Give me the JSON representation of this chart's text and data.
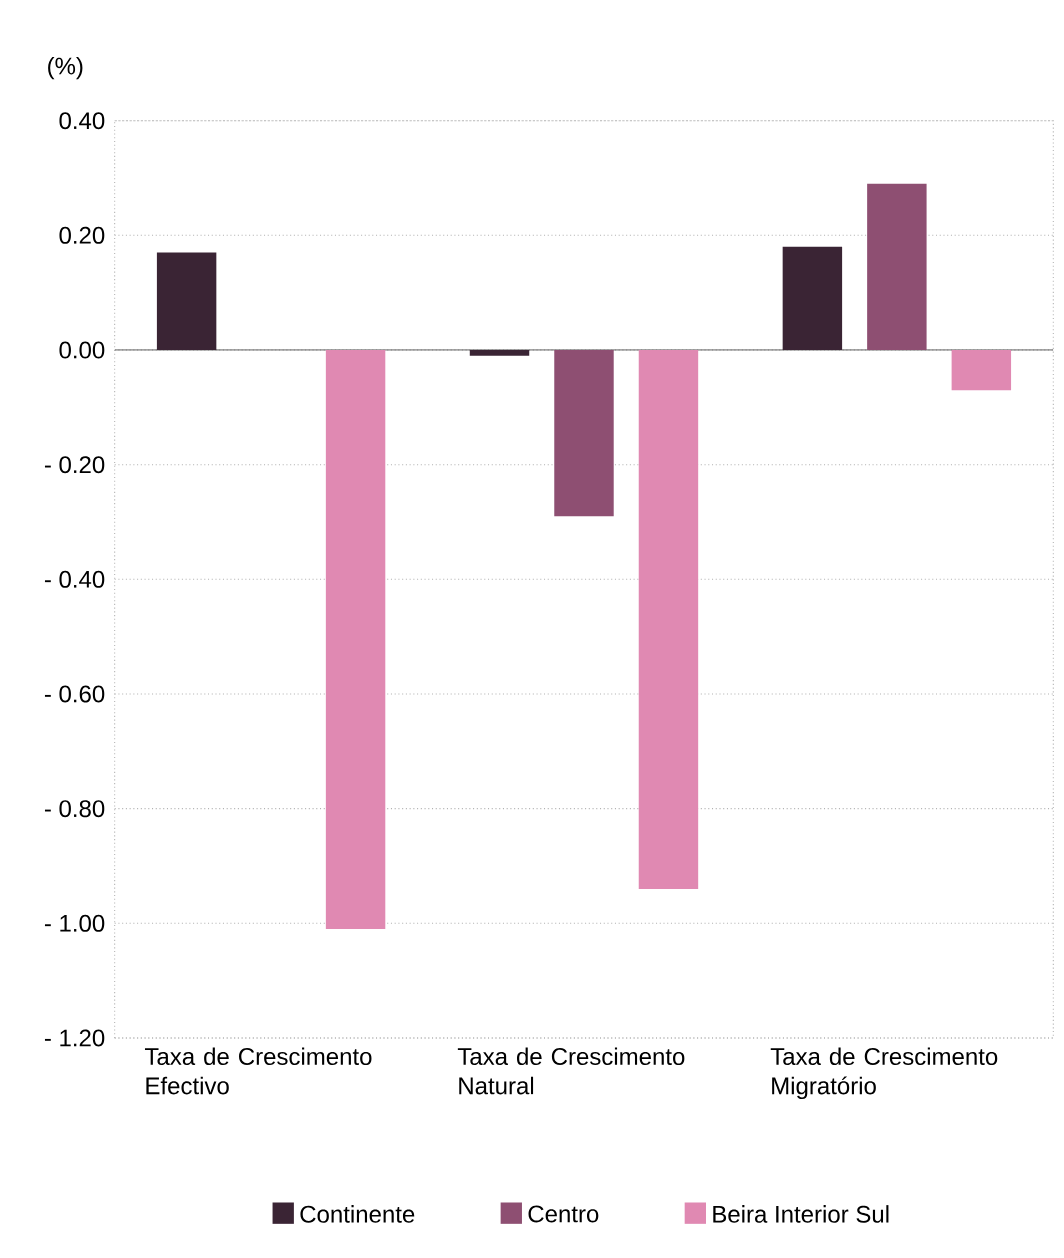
{
  "chart_data": {
    "type": "bar",
    "ylabel": "(%)",
    "categories": [
      "Taxa de Crescimento Efectivo",
      "Taxa de Crescimento Natural",
      "Taxa de Crescimento Migratório"
    ],
    "series": [
      {
        "name": "Continente",
        "color": "#3a2434",
        "values": [
          0.17,
          -0.01,
          0.18
        ]
      },
      {
        "name": "Centro",
        "color": "#8e4f72",
        "values": [
          0,
          -0.29,
          0.29
        ]
      },
      {
        "name": "Beira Interior Sul",
        "color": "#e089b2",
        "values": [
          -1.01,
          -0.94,
          -0.07
        ]
      }
    ],
    "ylim": [
      -1.2,
      0.4
    ],
    "yticks": [
      {
        "value": 0.4,
        "label": "0.40"
      },
      {
        "value": 0.2,
        "label": "0.20"
      },
      {
        "value": 0,
        "label": "0.00"
      },
      {
        "value": -0.2,
        "label": "- 0.20"
      },
      {
        "value": -0.4,
        "label": "- 0.40"
      },
      {
        "value": -0.6,
        "label": "- 0.60"
      },
      {
        "value": -0.8,
        "label": "- 0.80"
      },
      {
        "value": -1.0,
        "label": "- 1.00"
      },
      {
        "value": -1.2,
        "label": "- 1.20"
      }
    ],
    "grid": "y",
    "legend": "bottom"
  }
}
